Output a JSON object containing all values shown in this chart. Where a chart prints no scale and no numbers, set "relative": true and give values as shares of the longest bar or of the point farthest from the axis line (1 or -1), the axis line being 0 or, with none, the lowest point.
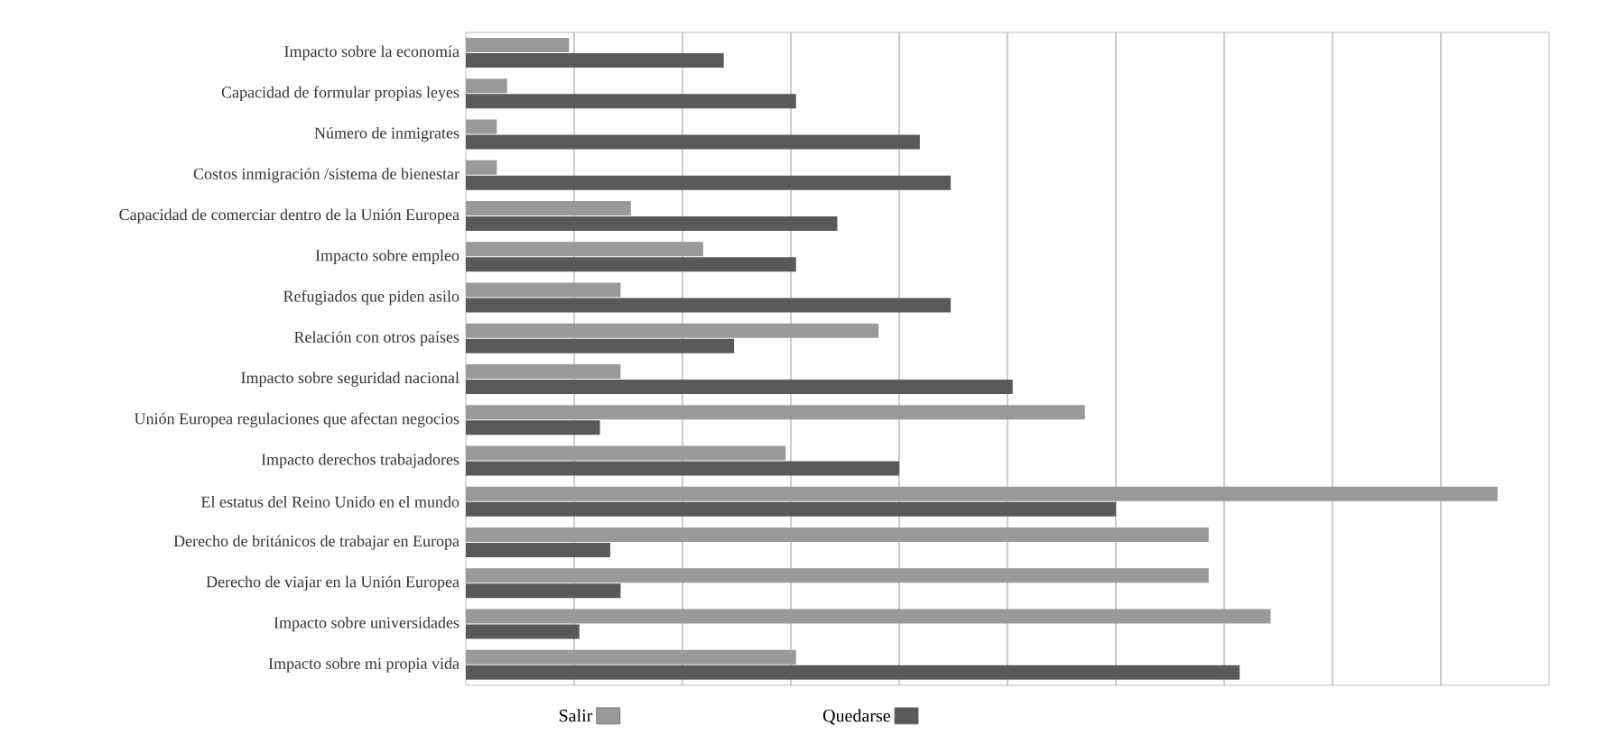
{
  "chart_data": {
    "type": "bar",
    "orientation": "horizontal",
    "relative": true,
    "grid": "x",
    "legend": "bottom",
    "categories": [
      "Impacto sobre la economía",
      "Capacidad de formular propias leyes",
      "Número de inmigrates",
      "Costos inmigración /sistema de bienestar",
      "Capacidad de comerciar dentro de la Unión Europea",
      "Impacto sobre empleo",
      "Refugiados que piden asilo",
      "Relación con otros países",
      "Impacto sobre seguridad nacional",
      "Unión Europea regulaciones que afectan negocios",
      "Impacto derechos trabajadores",
      "El estatus del Reino Unido en el mundo",
      "Derecho de británicos de trabajar en Europa",
      "Derecho de viajar en la Unión Europea",
      "Impacto sobre universidades",
      "Impacto sobre mi propia vida"
    ],
    "series": [
      {
        "name": "Salir",
        "color": "#999999",
        "values": [
          0.1,
          0.04,
          0.03,
          0.03,
          0.16,
          0.23,
          0.15,
          0.4,
          0.15,
          0.6,
          0.31,
          1,
          0.72,
          0.72,
          0.78,
          0.32
        ]
      },
      {
        "name": "Quedarse",
        "color": "#595959",
        "values": [
          0.25,
          0.32,
          0.44,
          0.47,
          0.36,
          0.32,
          0.47,
          0.26,
          0.53,
          0.13,
          0.42,
          0.63,
          0.14,
          0.15,
          0.11,
          0.75
        ]
      }
    ]
  }
}
